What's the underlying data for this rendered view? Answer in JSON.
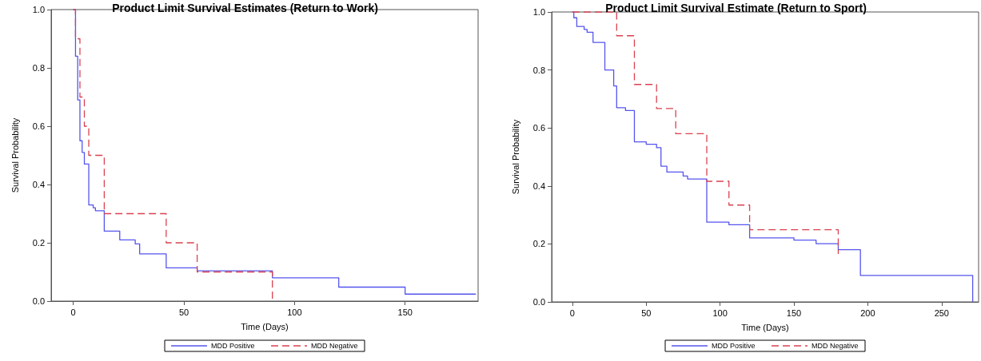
{
  "chart_data": [
    {
      "type": "step",
      "title": "Product Limit Survival Estimates (Return to Work)",
      "xlabel": "Time (Days)",
      "ylabel": "Survival Probability",
      "xlim": [
        -10,
        183
      ],
      "xticks": [
        0,
        50,
        100,
        150
      ],
      "ylim": [
        0,
        1
      ],
      "yticks": [
        {
          "value": 0,
          "label": "0.0"
        },
        {
          "value": 0.2,
          "label": "0.2"
        },
        {
          "value": 0.4,
          "label": "0.4"
        },
        {
          "value": 0.6,
          "label": "0.6"
        },
        {
          "value": 0.8,
          "label": "0.8"
        },
        {
          "value": 1,
          "label": "1.0"
        }
      ],
      "grid": false,
      "legend": "bottom",
      "marker": "none",
      "series": [
        {
          "name": "MDD Positive",
          "color": "#5555ee",
          "line_style": "solid",
          "x": [
            0,
            1,
            2,
            3,
            4,
            5,
            7,
            9,
            10,
            14,
            21,
            28,
            30,
            42,
            56,
            90,
            120,
            150,
            182
          ],
          "values": [
            1,
            0.84,
            0.69,
            0.55,
            0.51,
            0.47,
            0.33,
            0.32,
            0.31,
            0.24,
            0.21,
            0.196,
            0.162,
            0.114,
            0.104,
            0.08,
            0.048,
            0.024,
            0.024
          ]
        },
        {
          "name": "MDD Negative",
          "color": "#d9414f",
          "line_style": "dashed",
          "x": [
            0,
            1,
            3,
            5,
            7,
            14,
            42,
            56,
            90
          ],
          "values": [
            1,
            0.9,
            0.7,
            0.6,
            0.5,
            0.3,
            0.2,
            0.1,
            0
          ]
        }
      ]
    },
    {
      "type": "step",
      "title": "Product Limit Survival Estimate (Return to Sport)",
      "xlabel": "Time (Days)",
      "ylabel": "Survival Probability",
      "xlim": [
        -14,
        275
      ],
      "xticks": [
        0,
        50,
        100,
        150,
        200,
        250
      ],
      "ylim": [
        0,
        1
      ],
      "yticks": [
        {
          "value": 0,
          "label": "0.0"
        },
        {
          "value": 0.2,
          "label": "0.2"
        },
        {
          "value": 0.4,
          "label": "0.4"
        },
        {
          "value": 0.6,
          "label": "0.6"
        },
        {
          "value": 0.8,
          "label": "0.8"
        },
        {
          "value": 1,
          "label": "1.0"
        }
      ],
      "grid": false,
      "legend": "bottom",
      "marker": "none",
      "series": [
        {
          "name": "MDD Positive",
          "color": "#5555ee",
          "line_style": "solid",
          "x": [
            0,
            1,
            3,
            8,
            10,
            14,
            22,
            28,
            30,
            36,
            42,
            50,
            57,
            60,
            64,
            75,
            78,
            91,
            106,
            120,
            150,
            165,
            180,
            195,
            271
          ],
          "values": [
            1,
            0.98,
            0.95,
            0.94,
            0.93,
            0.895,
            0.8,
            0.745,
            0.67,
            0.66,
            0.552,
            0.544,
            0.532,
            0.468,
            0.448,
            0.434,
            0.424,
            0.275,
            0.266,
            0.221,
            0.213,
            0.201,
            0.18,
            0.091,
            0
          ]
        },
        {
          "name": "MDD Negative",
          "color": "#d9414f",
          "line_style": "dashed",
          "x": [
            0,
            30,
            42,
            57,
            70,
            91,
            106,
            120,
            180
          ],
          "values": [
            1,
            0.918,
            0.75,
            0.667,
            0.58,
            0.416,
            0.334,
            0.249,
            0.165
          ]
        }
      ]
    }
  ]
}
